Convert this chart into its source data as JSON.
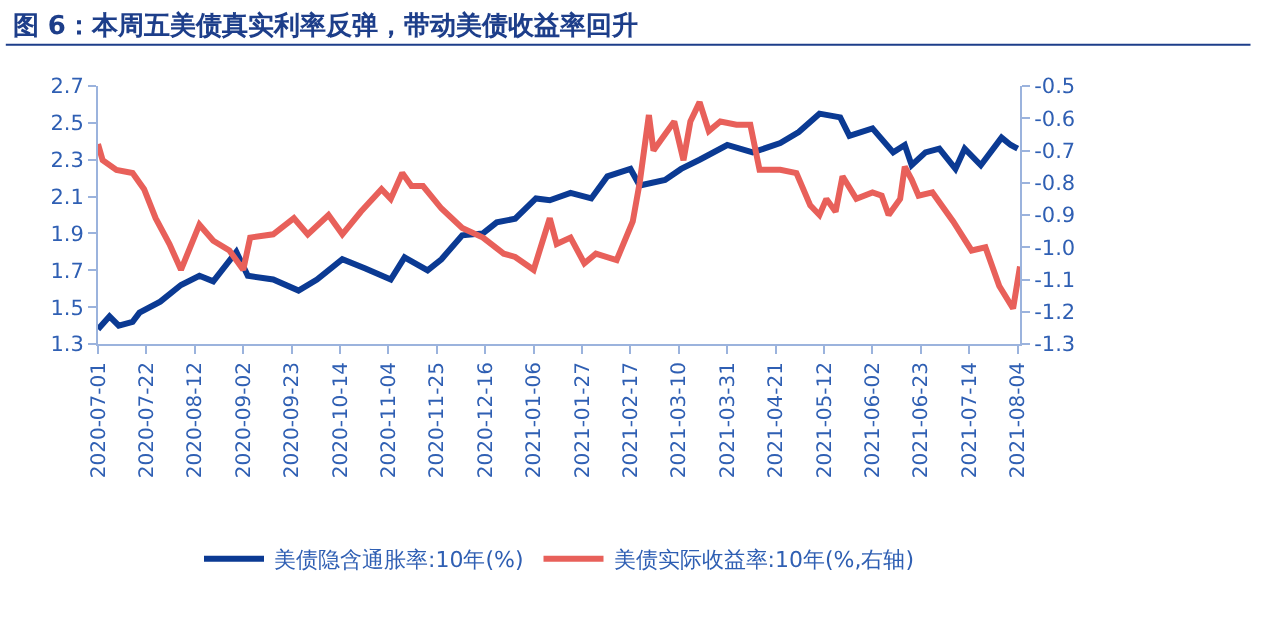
{
  "chart_data": {
    "type": "line",
    "title": "图 6：本周五美债真实利率反弹，带动美债收益率回升",
    "xlim": [
      "2020-07-01",
      "2021-08-05"
    ],
    "xticks": [
      "2020-07-01",
      "2020-07-22",
      "2020-08-12",
      "2020-09-02",
      "2020-09-23",
      "2020-10-14",
      "2020-11-04",
      "2020-11-25",
      "2020-12-16",
      "2021-01-06",
      "2021-01-27",
      "2021-02-17",
      "2021-03-10",
      "2021-03-31",
      "2021-04-21",
      "2021-05-12",
      "2021-06-02",
      "2021-06-23",
      "2021-07-14",
      "2021-08-04"
    ],
    "ylim": [
      1.3,
      2.7
    ],
    "yticks": [
      1.3,
      1.5,
      1.7,
      1.9,
      2.1,
      2.3,
      2.5,
      2.7
    ],
    "y2lim": [
      -1.3,
      -0.5
    ],
    "y2ticks": [
      -1.3,
      -1.2,
      -1.1,
      {
        "value": -1.0,
        "label": "-1.0"
      },
      -0.9,
      -0.8,
      -0.7,
      -0.6,
      -0.5
    ],
    "grid": false,
    "legend": "bottom",
    "marker": "none",
    "line_style": "solid",
    "series": [
      {
        "name": "美债隐含通胀率:10年(%)",
        "color": "#0b3a93",
        "x": [
          "2020-07-01",
          "2020-07-06",
          "2020-07-10",
          "2020-07-16",
          "2020-07-19",
          "2020-07-28",
          "2020-08-06",
          "2020-08-14",
          "2020-08-20",
          "2020-08-30",
          "2020-09-04",
          "2020-09-15",
          "2020-09-26",
          "2020-10-04",
          "2020-10-15",
          "2020-10-25",
          "2020-11-05",
          "2020-11-11",
          "2020-11-21",
          "2020-11-27",
          "2020-12-06",
          "2020-12-15",
          "2020-12-21",
          "2020-12-29",
          "2021-01-07",
          "2021-01-13",
          "2021-01-22",
          "2021-01-31",
          "2021-02-07",
          "2021-02-17",
          "2021-02-21",
          "2021-03-04",
          "2021-03-11",
          "2021-03-19",
          "2021-03-31",
          "2021-04-11",
          "2021-04-23",
          "2021-05-01",
          "2021-05-10",
          "2021-05-19",
          "2021-05-23",
          "2021-06-02",
          "2021-06-11",
          "2021-06-16",
          "2021-06-19",
          "2021-06-25",
          "2021-07-01",
          "2021-07-08",
          "2021-07-12",
          "2021-07-19",
          "2021-07-28",
          "2021-08-01",
          "2021-08-04"
        ],
        "values": [
          1.38,
          1.45,
          1.4,
          1.42,
          1.47,
          1.53,
          1.62,
          1.67,
          1.64,
          1.8,
          1.67,
          1.65,
          1.59,
          1.65,
          1.76,
          1.71,
          1.65,
          1.77,
          1.7,
          1.76,
          1.89,
          1.9,
          1.96,
          1.98,
          2.09,
          2.08,
          2.12,
          2.09,
          2.21,
          2.25,
          2.16,
          2.19,
          2.25,
          2.3,
          2.38,
          2.34,
          2.39,
          2.45,
          2.55,
          2.53,
          2.43,
          2.47,
          2.34,
          2.38,
          2.27,
          2.34,
          2.36,
          2.25,
          2.36,
          2.27,
          2.42,
          2.38,
          2.36
        ]
      },
      {
        "name": "美债实际收益率:10年(%,右轴)",
        "color": "#e8605a",
        "axis": "y2",
        "x": [
          "2020-07-01",
          "2020-07-03",
          "2020-07-09",
          "2020-07-16",
          "2020-07-21",
          "2020-07-26",
          "2020-08-01",
          "2020-08-06",
          "2020-08-14",
          "2020-08-20",
          "2020-08-27",
          "2020-09-02",
          "2020-09-05",
          "2020-09-15",
          "2020-09-24",
          "2020-09-30",
          "2020-10-09",
          "2020-10-15",
          "2020-10-23",
          "2020-11-01",
          "2020-11-05",
          "2020-11-10",
          "2020-11-14",
          "2020-11-19",
          "2020-11-27",
          "2020-12-06",
          "2020-12-15",
          "2020-12-24",
          "2020-12-29",
          "2021-01-06",
          "2021-01-13",
          "2021-01-16",
          "2021-01-22",
          "2021-01-28",
          "2021-02-02",
          "2021-02-11",
          "2021-02-18",
          "2021-02-21",
          "2021-02-25",
          "2021-02-27",
          "2021-03-03",
          "2021-03-08",
          "2021-03-12",
          "2021-03-15",
          "2021-03-19",
          "2021-03-23",
          "2021-03-28",
          "2021-04-04",
          "2021-04-10",
          "2021-04-14",
          "2021-04-23",
          "2021-04-30",
          "2021-05-06",
          "2021-05-10",
          "2021-05-13",
          "2021-05-17",
          "2021-05-20",
          "2021-05-26",
          "2021-06-02",
          "2021-06-06",
          "2021-06-09",
          "2021-06-14",
          "2021-06-16",
          "2021-06-19",
          "2021-06-22",
          "2021-06-28",
          "2021-07-07",
          "2021-07-15",
          "2021-07-21",
          "2021-07-27",
          "2021-08-02",
          "2021-08-05"
        ],
        "values": [
          -0.68,
          -0.73,
          -0.76,
          -0.77,
          -0.82,
          -0.91,
          -0.99,
          -1.07,
          -0.93,
          -0.98,
          -1.01,
          -1.07,
          -0.97,
          -0.96,
          -0.91,
          -0.96,
          -0.9,
          -0.96,
          -0.89,
          -0.82,
          -0.85,
          -0.77,
          -0.81,
          -0.81,
          -0.88,
          -0.94,
          -0.97,
          -1.02,
          -1.03,
          -1.07,
          -0.91,
          -0.99,
          -0.97,
          -1.05,
          -1.02,
          -1.04,
          -0.92,
          -0.8,
          -0.59,
          -0.7,
          -0.66,
          -0.61,
          -0.73,
          -0.61,
          -0.55,
          -0.64,
          -0.61,
          -0.62,
          -0.62,
          -0.76,
          -0.76,
          -0.77,
          -0.87,
          -0.9,
          -0.85,
          -0.89,
          -0.78,
          -0.85,
          -0.83,
          -0.84,
          -0.9,
          -0.85,
          -0.75,
          -0.79,
          -0.84,
          -0.83,
          -0.92,
          -1.01,
          -1.0,
          -1.12,
          -1.19,
          -1.06
        ]
      }
    ]
  }
}
